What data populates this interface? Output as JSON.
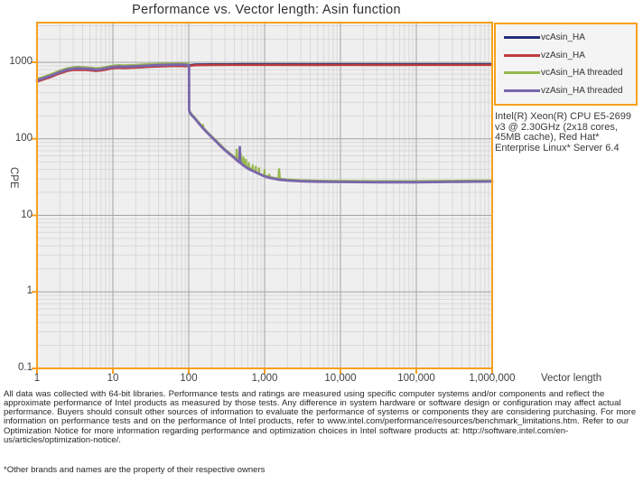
{
  "title": "Performance vs. Vector length: Asin function",
  "axes": {
    "x_title": "Vector length",
    "y_title": "CPE",
    "x_ticks": [
      "1",
      "10",
      "100",
      "1,000",
      "10,000",
      "100,000",
      "1,000,000"
    ],
    "y_ticks": [
      "1000",
      "100",
      "10",
      "1",
      "0.1"
    ]
  },
  "system_note": "Intel(R) Xeon(R) CPU E5-2699 v3 @ 2.30GHz (2x18 cores, 45MB cache), Red Hat* Enterprise Linux* Server 6.4",
  "footer": {
    "disclaimer": "All data was collected with 64-bit libraries. Performance tests and ratings are measured using specific computer systems and/or components and reflect the approximate performance of Intel products as measured by those tests. Any difference in system hardware or software design or configuration may affect actual performance. Buyers should consult other sources of information to evaluate the performance of systems or components they are considering purchasing. For more information on performance tests and on the performance of Intel products, refer to www.intel.com/performance/resources/benchmark_limitations.htm.  Refer to our Optimization Notice for more information regarding performance and optimization choices in Intel software products at: http://software.intel.com/en-us/articles/optimization-notice/.",
    "footnote": "*Other brands and names are the property of their respective owners"
  },
  "colors": {
    "axis_border": "#F8A01D",
    "plot_bg": "#EFEFEF",
    "grid_minor": "#D9D9D9",
    "grid_major": "#A3A3A3"
  },
  "chart_data": {
    "type": "line",
    "title": "Performance vs. Vector length: Asin function",
    "xlabel": "Vector length",
    "ylabel": "CPE",
    "x_scale": "log",
    "y_scale": "log",
    "xlim": [
      1,
      1000000
    ],
    "ylim": [
      0.1,
      3300
    ],
    "grid": true,
    "legend_position": "top-right",
    "series": [
      {
        "name": "vcAsin_HA",
        "color": "#252E78",
        "width": 2.2,
        "points": [
          [
            1,
            574
          ],
          [
            1.5,
            658
          ],
          [
            2,
            738
          ],
          [
            2.5,
            792
          ],
          [
            3,
            817
          ],
          [
            4,
            820
          ],
          [
            5,
            810
          ],
          [
            6,
            792
          ],
          [
            7,
            804
          ],
          [
            8,
            822
          ],
          [
            9,
            843
          ],
          [
            10,
            859
          ],
          [
            12,
            871
          ],
          [
            14,
            863
          ],
          [
            17,
            871
          ],
          [
            20,
            876
          ],
          [
            25,
            888
          ],
          [
            30,
            896
          ],
          [
            40,
            906
          ],
          [
            50,
            913
          ],
          [
            60,
            919
          ],
          [
            70,
            923
          ],
          [
            80,
            919
          ],
          [
            90,
            913
          ],
          [
            100,
            916
          ],
          [
            120,
            935
          ],
          [
            200,
            944
          ],
          [
            500,
            946
          ],
          [
            1000,
            946
          ],
          [
            5000,
            945
          ],
          [
            10000,
            946
          ],
          [
            50000,
            945
          ],
          [
            100000,
            946
          ],
          [
            500000,
            947
          ],
          [
            1000000,
            947
          ]
        ]
      },
      {
        "name": "vzAsin_HA",
        "color": "#BE3D3F",
        "width": 2.4,
        "points": [
          [
            1,
            557
          ],
          [
            1.5,
            638
          ],
          [
            2,
            715
          ],
          [
            2.5,
            768
          ],
          [
            3,
            792
          ],
          [
            4,
            795
          ],
          [
            5,
            785
          ],
          [
            6,
            768
          ],
          [
            7,
            780
          ],
          [
            8,
            797
          ],
          [
            9,
            818
          ],
          [
            10,
            833
          ],
          [
            12,
            845
          ],
          [
            14,
            837
          ],
          [
            17,
            845
          ],
          [
            20,
            850
          ],
          [
            25,
            861
          ],
          [
            30,
            869
          ],
          [
            40,
            878
          ],
          [
            50,
            885
          ],
          [
            60,
            891
          ],
          [
            70,
            895
          ],
          [
            80,
            891
          ],
          [
            90,
            885
          ],
          [
            100,
            896
          ],
          [
            120,
            912
          ],
          [
            200,
            920
          ],
          [
            500,
            922
          ],
          [
            1000,
            922
          ],
          [
            5000,
            921
          ],
          [
            10000,
            922
          ],
          [
            50000,
            921
          ],
          [
            100000,
            922
          ],
          [
            500000,
            923
          ],
          [
            1000000,
            922
          ]
        ]
      },
      {
        "name": "vcAsin_HA threaded",
        "color": "#97B74F",
        "width": 2.4,
        "points": [
          [
            1,
            604
          ],
          [
            1.2,
            640
          ],
          [
            1.5,
            692
          ],
          [
            2,
            776
          ],
          [
            2.5,
            833
          ],
          [
            3,
            859
          ],
          [
            3.5,
            869
          ],
          [
            4,
            862
          ],
          [
            5,
            851
          ],
          [
            6,
            833
          ],
          [
            7,
            845
          ],
          [
            8,
            864
          ],
          [
            9,
            886
          ],
          [
            10,
            903
          ],
          [
            12,
            915
          ],
          [
            14,
            907
          ],
          [
            17,
            915
          ],
          [
            20,
            920
          ],
          [
            25,
            933
          ],
          [
            30,
            941
          ],
          [
            40,
            951
          ],
          [
            50,
            959
          ],
          [
            60,
            965
          ],
          [
            70,
            969
          ],
          [
            80,
            965
          ],
          [
            90,
            959
          ],
          [
            100,
            950
          ],
          [
            100.8,
            950
          ],
          [
            101,
            242
          ],
          [
            104,
            225
          ],
          [
            110,
            208
          ],
          [
            118,
            194
          ],
          [
            125,
            181
          ],
          [
            140,
            158
          ],
          [
            150,
            140
          ],
          [
            153,
            152
          ],
          [
            157,
            138
          ],
          [
            180,
            120
          ],
          [
            200,
            108
          ],
          [
            230,
            95
          ],
          [
            260,
            84
          ],
          [
            300,
            73
          ],
          [
            350,
            64.5
          ],
          [
            400,
            58
          ],
          [
            425,
            55.5
          ],
          [
            429,
            72
          ],
          [
            434,
            54.5
          ],
          [
            455,
            52
          ],
          [
            465,
            51
          ],
          [
            484,
            50
          ],
          [
            488,
            62
          ],
          [
            493,
            49.5
          ],
          [
            523,
            47.5
          ],
          [
            527,
            57
          ],
          [
            532,
            46.5
          ],
          [
            563,
            44.5
          ],
          [
            567,
            53
          ],
          [
            572,
            44
          ],
          [
            613,
            42.5
          ],
          [
            617,
            48
          ],
          [
            622,
            42
          ],
          [
            650,
            41
          ],
          [
            693,
            39.5
          ],
          [
            698,
            45
          ],
          [
            703,
            39
          ],
          [
            760,
            37.3
          ],
          [
            764,
            43
          ],
          [
            769,
            36.9
          ],
          [
            840,
            35.3
          ],
          [
            844,
            41
          ],
          [
            849,
            34.9
          ],
          [
            993,
            33.4
          ],
          [
            998,
            39
          ],
          [
            1004,
            33.1
          ],
          [
            1130,
            31.9
          ],
          [
            1150,
            34
          ],
          [
            1175,
            31.6
          ],
          [
            1300,
            31
          ],
          [
            1520,
            30.2
          ],
          [
            1550,
            40
          ],
          [
            1590,
            30
          ],
          [
            2000,
            29.4
          ],
          [
            3000,
            28.7
          ],
          [
            5000,
            28.3
          ],
          [
            10000,
            28.1
          ],
          [
            30000,
            27.9
          ],
          [
            100000,
            27.9
          ],
          [
            300000,
            28.2
          ],
          [
            700000,
            28.4
          ],
          [
            1000000,
            28.5
          ]
        ]
      },
      {
        "name": "vzAsin_HA threaded",
        "color": "#7A66AC",
        "width": 2.8,
        "points": [
          [
            1,
            580
          ],
          [
            1.2,
            615
          ],
          [
            1.5,
            665
          ],
          [
            2,
            745
          ],
          [
            2.5,
            800
          ],
          [
            3,
            825
          ],
          [
            3.5,
            835
          ],
          [
            4,
            828
          ],
          [
            5,
            818
          ],
          [
            6,
            800
          ],
          [
            7,
            812
          ],
          [
            8,
            830
          ],
          [
            9,
            852
          ],
          [
            10,
            868
          ],
          [
            12,
            880
          ],
          [
            14,
            872
          ],
          [
            17,
            880
          ],
          [
            20,
            885
          ],
          [
            25,
            897
          ],
          [
            30,
            905
          ],
          [
            40,
            915
          ],
          [
            50,
            922
          ],
          [
            60,
            928
          ],
          [
            70,
            932
          ],
          [
            80,
            928
          ],
          [
            90,
            922
          ],
          [
            100,
            912
          ],
          [
            100.8,
            912
          ],
          [
            101,
            235
          ],
          [
            104,
            218
          ],
          [
            110,
            202
          ],
          [
            118,
            188
          ],
          [
            125,
            176
          ],
          [
            140,
            153
          ],
          [
            160,
            132
          ],
          [
            180,
            117
          ],
          [
            200,
            105
          ],
          [
            230,
            92
          ],
          [
            260,
            81
          ],
          [
            300,
            71
          ],
          [
            350,
            62.5
          ],
          [
            400,
            56
          ],
          [
            430,
            52.5
          ],
          [
            455,
            50
          ],
          [
            465,
            49
          ],
          [
            470,
            78
          ],
          [
            476,
            50
          ],
          [
            500,
            46.5
          ],
          [
            550,
            43.5
          ],
          [
            600,
            41
          ],
          [
            650,
            39.3
          ],
          [
            700,
            38
          ],
          [
            800,
            35.7
          ],
          [
            900,
            33.8
          ],
          [
            1000,
            32.3
          ],
          [
            1200,
            30.6
          ],
          [
            1500,
            29.4
          ],
          [
            2000,
            28.5
          ],
          [
            3000,
            27.9
          ],
          [
            5000,
            27.5
          ],
          [
            10000,
            27.3
          ],
          [
            30000,
            27.1
          ],
          [
            100000,
            27.1
          ],
          [
            300000,
            27.4
          ],
          [
            700000,
            27.6
          ],
          [
            1000000,
            27.7
          ]
        ]
      }
    ]
  }
}
